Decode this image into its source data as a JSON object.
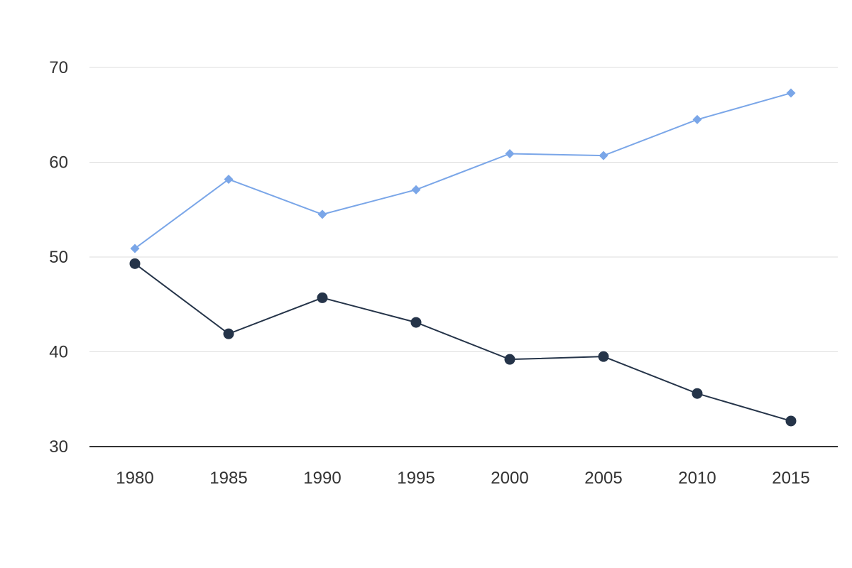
{
  "chart_data": {
    "type": "line",
    "title": "",
    "xlabel": "",
    "ylabel": "",
    "x": [
      1980,
      1985,
      1990,
      1995,
      2000,
      2005,
      2010,
      2015
    ],
    "x_tick_labels": [
      "1980",
      "1985",
      "1990",
      "1995",
      "2000",
      "2005",
      "2010",
      "2015"
    ],
    "ylim": [
      30,
      70
    ],
    "y_ticks": [
      30,
      40,
      50,
      60,
      70
    ],
    "y_tick_labels": [
      "30",
      "40",
      "50",
      "60",
      "70"
    ],
    "grid": true,
    "legend": "none",
    "series": [
      {
        "values": [
          50.9,
          58.2,
          54.5,
          57.1,
          60.9,
          60.7,
          64.5,
          67.3
        ],
        "color": "#7aa6e8",
        "marker": "diamond"
      },
      {
        "values": [
          49.3,
          41.9,
          45.7,
          43.1,
          39.2,
          39.5,
          35.6,
          32.7
        ],
        "color": "#253449",
        "marker": "circle"
      }
    ]
  }
}
